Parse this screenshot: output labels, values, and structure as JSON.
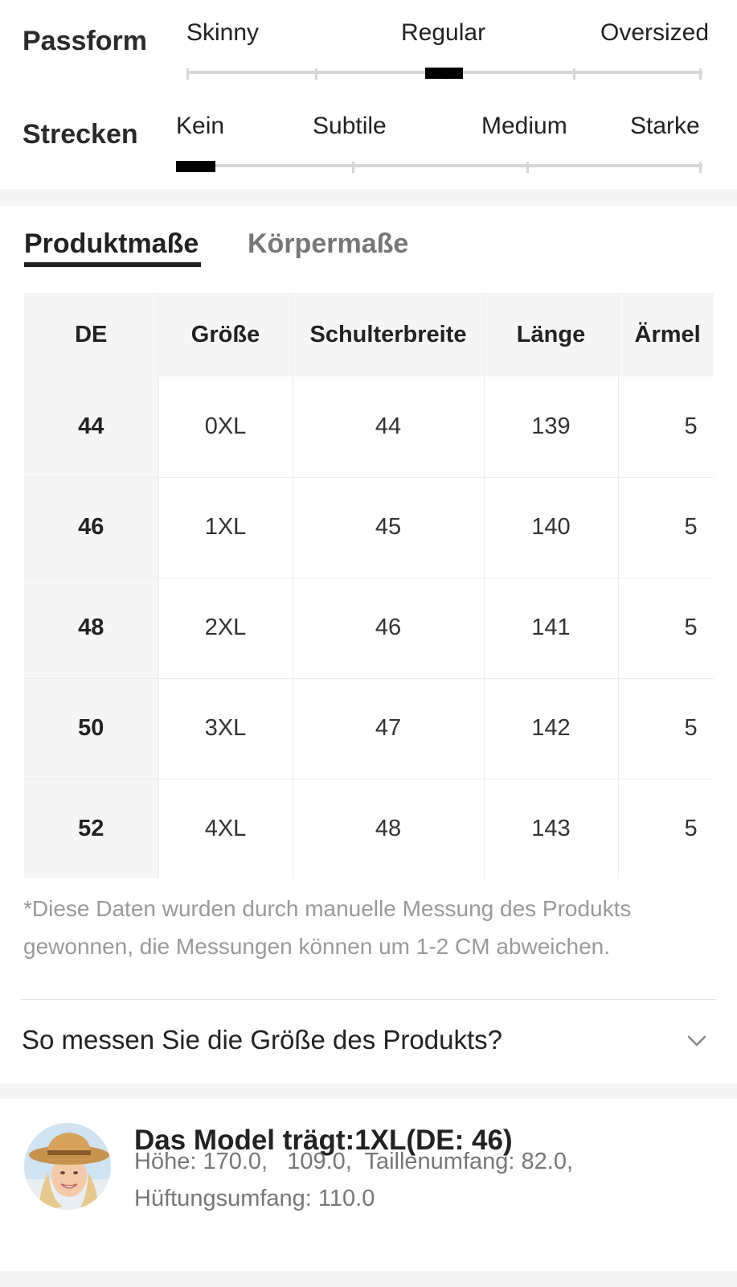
{
  "fit": {
    "passform": {
      "label": "Passform",
      "options": [
        "Skinny",
        "Regular",
        "Oversized"
      ],
      "selected": "Regular"
    },
    "strecken": {
      "label": "Strecken",
      "options": [
        "Kein",
        "Subtile",
        "Medium",
        "Starke"
      ],
      "selected": "Kein"
    }
  },
  "size_chart": {
    "tabs": [
      "Produktmaße",
      "Körpermaße"
    ],
    "active_tab": "Produktmaße",
    "columns": [
      "DE",
      "Größe",
      "Schulterbreite",
      "Länge",
      "Ärmel"
    ],
    "rows": [
      {
        "de": "44",
        "size": "0XL",
        "shoulder": "44",
        "length": "139",
        "sleeve": "5"
      },
      {
        "de": "46",
        "size": "1XL",
        "shoulder": "45",
        "length": "140",
        "sleeve": "5"
      },
      {
        "de": "48",
        "size": "2XL",
        "shoulder": "46",
        "length": "141",
        "sleeve": "5"
      },
      {
        "de": "50",
        "size": "3XL",
        "shoulder": "47",
        "length": "142",
        "sleeve": "5"
      },
      {
        "de": "52",
        "size": "4XL",
        "shoulder": "48",
        "length": "143",
        "sleeve": "5"
      }
    ],
    "note_line1": "*Diese Daten wurden durch manuelle Messung des Produkts",
    "note_line2": "gewonnen, die Messungen können um 1-2 CM abweichen.",
    "howto_label": "So messen Sie die Größe des Produkts?",
    "howto_icon": "chevron-down-icon"
  },
  "model": {
    "avatar_icon": "model-avatar",
    "title": "Das Model trägt:1XL(DE: 46)",
    "line1": "Höhe: 170.0,   109.0,  Taillenumfang: 82.0,",
    "line2": "Hüftungsumfang: 110.0"
  },
  "colors": {
    "accent": "#000000",
    "track": "#d6d6d6",
    "muted_text": "#9a9a9a",
    "header_bg": "#f5f5f5"
  }
}
